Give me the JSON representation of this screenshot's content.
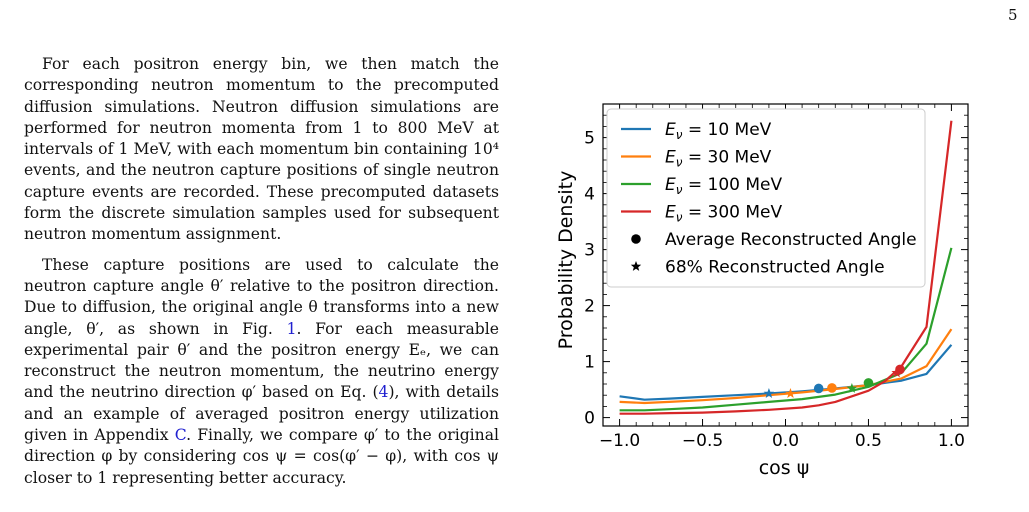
{
  "page_number": "5",
  "paragraph1": "For each positron energy bin, we then match the corresponding neutron momentum to the precomputed diffusion simulations. Neutron diffusion simulations are performed for neutron momenta from 1 to 800 MeV at intervals of 1 MeV, with each momentum bin containing 10⁴ events, and the neutron capture positions of single neutron capture events are recorded. These precomputed datasets form the discrete simulation samples used for subsequent neutron momentum assignment.",
  "paragraph2": {
    "part1": "These capture positions are used to calculate the neutron capture angle θ′ relative to the positron direction. Due to diffusion, the original angle θ transforms into a new angle, θ′, as shown in Fig. ",
    "fig_ref": "1",
    "part2": ". For each measurable experimental pair θ′ and the positron energy Eₑ, we can reconstruct the neutron momentum, the neutrino energy and the neutrino direction φ′ based on Eq. (",
    "eq_ref": "4",
    "part3": "), with details and an example of averaged positron energy utilization given in Appendix ",
    "app_ref": "C",
    "part4": ". Finally, we compare φ′ to the original direction φ by considering cos ψ = cos(φ′ − φ), with cos ψ closer to 1 representing better accuracy."
  },
  "chart_data": {
    "type": "line",
    "xlabel": "cos ψ",
    "ylabel": "Probability Density",
    "xlim": [
      -1.1,
      1.1
    ],
    "ylim": [
      -0.15,
      5.6
    ],
    "xticks": [
      -1.0,
      -0.5,
      0.0,
      0.5,
      1.0
    ],
    "xtick_labels": [
      "−1.0",
      "−0.5",
      "0.0",
      "0.5",
      "1.0"
    ],
    "yticks": [
      0,
      1,
      2,
      3,
      4,
      5
    ],
    "ytick_labels": [
      "0",
      "1",
      "2",
      "3",
      "4",
      "5"
    ],
    "legend_position": "upper-left",
    "grid": false,
    "series": [
      {
        "name": "E_ν = 10 MeV",
        "color": "#1f77b4",
        "x": [
          -1.0,
          -0.85,
          -0.7,
          -0.5,
          -0.3,
          -0.1,
          0.1,
          0.3,
          0.5,
          0.7,
          0.85,
          1.0
        ],
        "y": [
          0.38,
          0.32,
          0.34,
          0.37,
          0.4,
          0.43,
          0.47,
          0.52,
          0.58,
          0.66,
          0.78,
          1.3
        ]
      },
      {
        "name": "E_ν = 30 MeV",
        "color": "#ff7f0e",
        "x": [
          -1.0,
          -0.85,
          -0.7,
          -0.5,
          -0.3,
          -0.1,
          0.1,
          0.3,
          0.5,
          0.7,
          0.85,
          1.0
        ],
        "y": [
          0.28,
          0.26,
          0.28,
          0.31,
          0.35,
          0.4,
          0.45,
          0.51,
          0.58,
          0.7,
          0.92,
          1.58
        ]
      },
      {
        "name": "E_ν = 100 MeV",
        "color": "#2ca02c",
        "x": [
          -1.0,
          -0.85,
          -0.7,
          -0.5,
          -0.3,
          -0.1,
          0.1,
          0.3,
          0.5,
          0.7,
          0.85,
          1.0
        ],
        "y": [
          0.13,
          0.13,
          0.15,
          0.18,
          0.23,
          0.28,
          0.33,
          0.41,
          0.55,
          0.8,
          1.32,
          3.03
        ]
      },
      {
        "name": "E_ν = 300 MeV",
        "color": "#d62728",
        "x": [
          -1.0,
          -0.85,
          -0.7,
          -0.5,
          -0.3,
          -0.1,
          0.1,
          0.2,
          0.3,
          0.4,
          0.5,
          0.6,
          0.7,
          0.85,
          1.0
        ],
        "y": [
          0.07,
          0.07,
          0.08,
          0.09,
          0.11,
          0.14,
          0.18,
          0.22,
          0.28,
          0.38,
          0.48,
          0.65,
          0.92,
          1.62,
          5.3
        ]
      }
    ],
    "markers": [
      {
        "name": "Average Reconstructed Angle",
        "symbol": "circle",
        "points": [
          {
            "x": 0.2,
            "y": 0.52,
            "color": "#1f77b4"
          },
          {
            "x": 0.28,
            "y": 0.53,
            "color": "#ff7f0e"
          },
          {
            "x": 0.5,
            "y": 0.62,
            "color": "#2ca02c"
          },
          {
            "x": 0.69,
            "y": 0.86,
            "color": "#d62728"
          }
        ]
      },
      {
        "name": "68% Reconstructed Angle",
        "symbol": "star",
        "points": [
          {
            "x": -0.1,
            "y": 0.43,
            "color": "#1f77b4"
          },
          {
            "x": 0.03,
            "y": 0.43,
            "color": "#ff7f0e"
          },
          {
            "x": 0.4,
            "y": 0.52,
            "color": "#2ca02c"
          },
          {
            "x": 0.67,
            "y": 0.8,
            "color": "#d62728"
          }
        ]
      }
    ],
    "legend": [
      {
        "prefix": "E",
        "sub": "ν",
        "suffix": " = 10 MeV",
        "color": "#1f77b4",
        "kind": "line"
      },
      {
        "prefix": "E",
        "sub": "ν",
        "suffix": " = 30 MeV",
        "color": "#ff7f0e",
        "kind": "line"
      },
      {
        "prefix": "E",
        "sub": "ν",
        "suffix": " = 100 MeV",
        "color": "#2ca02c",
        "kind": "line"
      },
      {
        "prefix": "E",
        "sub": "ν",
        "suffix": " = 300 MeV",
        "color": "#d62728",
        "kind": "line"
      },
      {
        "label": "Average Reconstructed Angle",
        "color": "#000000",
        "kind": "circle"
      },
      {
        "label": "68% Reconstructed Angle",
        "color": "#000000",
        "kind": "star"
      }
    ]
  }
}
